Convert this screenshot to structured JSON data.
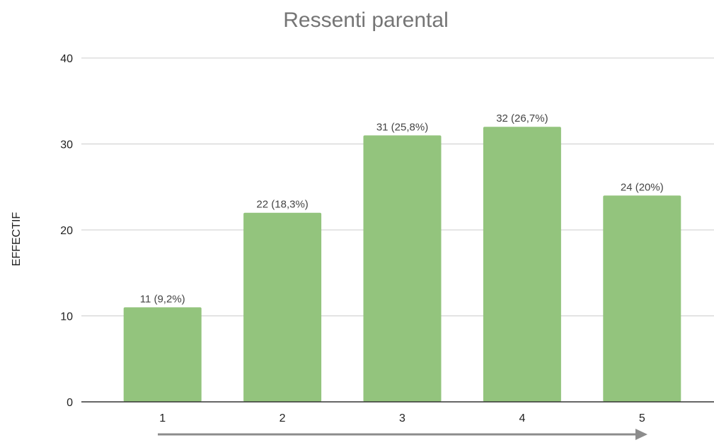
{
  "chart_data": {
    "type": "bar",
    "title": "Ressenti parental",
    "xlabel": "",
    "ylabel": "EFFECTIF",
    "categories": [
      "1",
      "2",
      "3",
      "4",
      "5"
    ],
    "values": [
      11,
      22,
      31,
      32,
      24
    ],
    "data_labels": [
      "11 (9,2%)",
      "22 (18,3%)",
      "31 (25,8%)",
      "32 (26,7%)",
      "24 (20%)"
    ],
    "yticks": [
      "0",
      "10",
      "20",
      "30",
      "40"
    ],
    "ylim": [
      0,
      40
    ],
    "grid": true,
    "legend": "none",
    "colors": {
      "bar": "#93c47d",
      "title": "#757575",
      "axis_text": "#222222",
      "data_label": "#444444",
      "grid": "#cccccc",
      "baseline": "#333333",
      "arrow": "#8c8c8c"
    }
  }
}
